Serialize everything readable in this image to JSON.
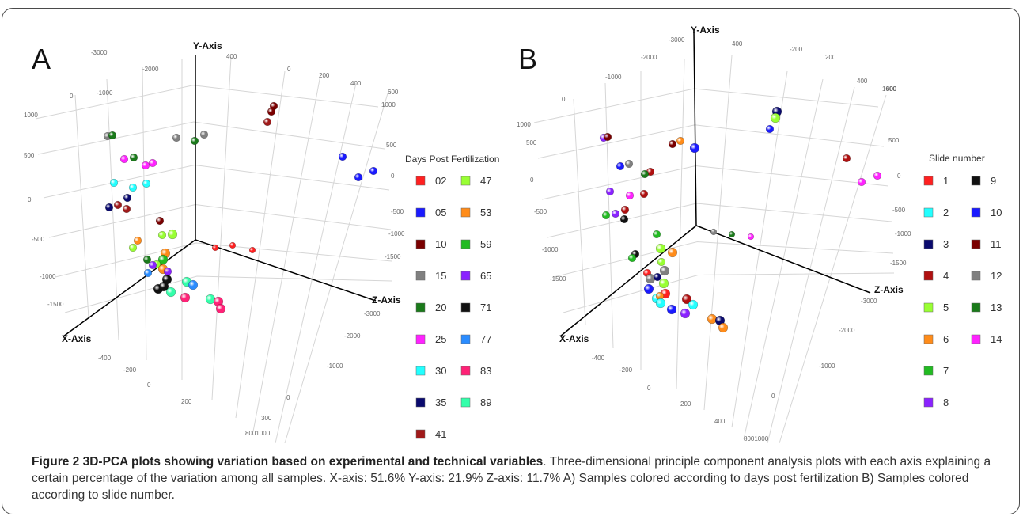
{
  "caption": {
    "title": "Figure 2 3D-PCA plots showing variation based on experimental and technical variables",
    "text": ". Three-dimensional principle component analysis plots with each axis explaining a certain percentage of the variation among all samples. X-axis: 51.6% Y-axis: 21.9% Z-axis: 11.7% A) Samples colored according to days post fertilization B) Samples colored according to slide number."
  },
  "chart_data": [
    {
      "type": "scatter",
      "panel_label": "A",
      "axes": {
        "x": "X-Axis",
        "y": "Y-Axis",
        "z": "Z-Axis"
      },
      "tick_labels": {
        "top_row": [
          "-3000",
          "-2000",
          "-1000",
          "0",
          "400",
          "0",
          "200",
          "400",
          "600"
        ],
        "left_column": [
          "1000",
          "500",
          "0",
          "-500",
          "-1000",
          "-1500"
        ],
        "right_column": [
          "1000",
          "500",
          "0",
          "-500",
          "-1000",
          "-1500"
        ],
        "bottom_right": [
          "-3000",
          "-2000",
          "-1000",
          "0",
          "300",
          "8001000"
        ],
        "bottom_left": [
          "-400",
          "-200",
          "0",
          "200"
        ]
      },
      "legend": {
        "title": "Days Post Fertilization",
        "placement": "right",
        "entries": [
          {
            "label": "02",
            "color": "#ff2020"
          },
          {
            "label": "05",
            "color": "#1a1aff"
          },
          {
            "label": "10",
            "color": "#7a0000"
          },
          {
            "label": "15",
            "color": "#808080"
          },
          {
            "label": "20",
            "color": "#1a7a1a"
          },
          {
            "label": "25",
            "color": "#ff22ff"
          },
          {
            "label": "30",
            "color": "#22ffff"
          },
          {
            "label": "35",
            "color": "#0a0a6e"
          },
          {
            "label": "41",
            "color": "#a01a1a"
          },
          {
            "label": "47",
            "color": "#99ff33"
          },
          {
            "label": "53",
            "color": "#ff8c1a"
          },
          {
            "label": "59",
            "color": "#22bb22"
          },
          {
            "label": "65",
            "color": "#8a22ff"
          },
          {
            "label": "71",
            "color": "#111111"
          },
          {
            "label": "77",
            "color": "#2a8cff"
          },
          {
            "label": "83",
            "color": "#ff2277"
          },
          {
            "label": "89",
            "color": "#33ffaa"
          }
        ]
      },
      "points": [
        {
          "group": "10",
          "x": 346,
          "y": 134,
          "r": 4
        },
        {
          "group": "10",
          "x": 343,
          "y": 141,
          "r": 4
        },
        {
          "group": "41",
          "x": 338,
          "y": 154,
          "r": 4
        },
        {
          "group": "05",
          "x": 433,
          "y": 198,
          "r": 4
        },
        {
          "group": "05",
          "x": 472,
          "y": 216,
          "r": 4
        },
        {
          "group": "05",
          "x": 453,
          "y": 224,
          "r": 4
        },
        {
          "group": "15",
          "x": 136,
          "y": 172,
          "r": 4
        },
        {
          "group": "20",
          "x": 142,
          "y": 171,
          "r": 4
        },
        {
          "group": "15",
          "x": 223,
          "y": 174,
          "r": 4
        },
        {
          "group": "15",
          "x": 258,
          "y": 170,
          "r": 4
        },
        {
          "group": "20",
          "x": 246,
          "y": 178,
          "r": 4
        },
        {
          "group": "25",
          "x": 157,
          "y": 201,
          "r": 4
        },
        {
          "group": "20",
          "x": 169,
          "y": 199,
          "r": 4
        },
        {
          "group": "25",
          "x": 184,
          "y": 209,
          "r": 4
        },
        {
          "group": "25",
          "x": 193,
          "y": 206,
          "r": 4
        },
        {
          "group": "30",
          "x": 144,
          "y": 231,
          "r": 4
        },
        {
          "group": "30",
          "x": 168,
          "y": 237,
          "r": 4
        },
        {
          "group": "30",
          "x": 185,
          "y": 232,
          "r": 4
        },
        {
          "group": "35",
          "x": 161,
          "y": 250,
          "r": 4
        },
        {
          "group": "35",
          "x": 138,
          "y": 262,
          "r": 4
        },
        {
          "group": "41",
          "x": 149,
          "y": 259,
          "r": 4
        },
        {
          "group": "41",
          "x": 160,
          "y": 264,
          "r": 4
        },
        {
          "group": "10",
          "x": 202,
          "y": 279,
          "r": 4
        },
        {
          "group": "47",
          "x": 205,
          "y": 297,
          "r": 4
        },
        {
          "group": "47",
          "x": 218,
          "y": 296,
          "r": 5
        },
        {
          "group": "53",
          "x": 174,
          "y": 304,
          "r": 4
        },
        {
          "group": "47",
          "x": 168,
          "y": 313,
          "r": 4
        },
        {
          "group": "53",
          "x": 209,
          "y": 320,
          "r": 5
        },
        {
          "group": "59",
          "x": 206,
          "y": 328,
          "r": 5
        },
        {
          "group": "20",
          "x": 186,
          "y": 328,
          "r": 4
        },
        {
          "group": "47",
          "x": 198,
          "y": 334,
          "r": 4
        },
        {
          "group": "65",
          "x": 193,
          "y": 335,
          "r": 4
        },
        {
          "group": "53",
          "x": 206,
          "y": 340,
          "r": 5
        },
        {
          "group": "77",
          "x": 187,
          "y": 345,
          "r": 4
        },
        {
          "group": "65",
          "x": 212,
          "y": 343,
          "r": 4
        },
        {
          "group": "71",
          "x": 211,
          "y": 353,
          "r": 5
        },
        {
          "group": "89",
          "x": 236,
          "y": 356,
          "r": 5
        },
        {
          "group": "77",
          "x": 244,
          "y": 360,
          "r": 5
        },
        {
          "group": "71",
          "x": 200,
          "y": 365,
          "r": 5
        },
        {
          "group": "71",
          "x": 207,
          "y": 362,
          "r": 5
        },
        {
          "group": "89",
          "x": 216,
          "y": 369,
          "r": 5
        },
        {
          "group": "83",
          "x": 234,
          "y": 376,
          "r": 5
        },
        {
          "group": "89",
          "x": 266,
          "y": 378,
          "r": 5
        },
        {
          "group": "83",
          "x": 276,
          "y": 381,
          "r": 5
        },
        {
          "group": "83",
          "x": 279,
          "y": 390,
          "r": 5
        },
        {
          "group": "02",
          "x": 272,
          "y": 313,
          "r": 3
        },
        {
          "group": "02",
          "x": 294,
          "y": 310,
          "r": 3
        },
        {
          "group": "02",
          "x": 319,
          "y": 316,
          "r": 3
        }
      ]
    },
    {
      "type": "scatter",
      "panel_label": "B",
      "axes": {
        "x": "X-Axis",
        "y": "Y-Axis",
        "z": "Z-Axis"
      },
      "tick_labels": {
        "top_row": [
          "-3000",
          "-2000",
          "-1000",
          "0",
          "400",
          "-200",
          "200",
          "400",
          "600"
        ],
        "left_column": [
          "1000",
          "500",
          "0",
          "-500",
          "-1000",
          "-1500"
        ],
        "right_column": [
          "1000",
          "500",
          "0",
          "-500",
          "-1000",
          "-1500"
        ],
        "bottom_right": [
          "-3000",
          "-2000",
          "-1000",
          "0",
          "8001000"
        ],
        "bottom_left": [
          "-400",
          "-200",
          "0",
          "200",
          "400"
        ]
      },
      "legend": {
        "title": "Slide number",
        "placement": "right",
        "entries": [
          {
            "label": "1",
            "color": "#ff2020"
          },
          {
            "label": "2",
            "color": "#22ffff"
          },
          {
            "label": "3",
            "color": "#0a0a6e"
          },
          {
            "label": "4",
            "color": "#b01010"
          },
          {
            "label": "5",
            "color": "#99ff33"
          },
          {
            "label": "6",
            "color": "#ff8c1a"
          },
          {
            "label": "7",
            "color": "#22bb22"
          },
          {
            "label": "8",
            "color": "#8a22ff"
          },
          {
            "label": "9",
            "color": "#111111"
          },
          {
            "label": "10",
            "color": "#1a1aff"
          },
          {
            "label": "11",
            "color": "#7a0000"
          },
          {
            "label": "12",
            "color": "#808080"
          },
          {
            "label": "13",
            "color": "#1a7a1a"
          },
          {
            "label": "14",
            "color": "#ff22ff"
          }
        ]
      },
      "points": [
        {
          "group": "3",
          "x": 342,
          "y": 141,
          "r": 5
        },
        {
          "group": "5",
          "x": 340,
          "y": 149,
          "r": 5
        },
        {
          "group": "10",
          "x": 333,
          "y": 163,
          "r": 4
        },
        {
          "group": "4",
          "x": 430,
          "y": 200,
          "r": 4
        },
        {
          "group": "14",
          "x": 469,
          "y": 222,
          "r": 4
        },
        {
          "group": "14",
          "x": 449,
          "y": 230,
          "r": 4
        },
        {
          "group": "8",
          "x": 123,
          "y": 174,
          "r": 4
        },
        {
          "group": "11",
          "x": 128,
          "y": 173,
          "r": 4
        },
        {
          "group": "11",
          "x": 210,
          "y": 182,
          "r": 4
        },
        {
          "group": "6",
          "x": 220,
          "y": 178,
          "r": 4
        },
        {
          "group": "10",
          "x": 238,
          "y": 187,
          "r": 5
        },
        {
          "group": "10",
          "x": 144,
          "y": 210,
          "r": 4
        },
        {
          "group": "12",
          "x": 155,
          "y": 207,
          "r": 4
        },
        {
          "group": "4",
          "x": 182,
          "y": 217,
          "r": 4
        },
        {
          "group": "13",
          "x": 175,
          "y": 220,
          "r": 4
        },
        {
          "group": "8",
          "x": 131,
          "y": 242,
          "r": 4
        },
        {
          "group": "14",
          "x": 156,
          "y": 247,
          "r": 4
        },
        {
          "group": "4",
          "x": 174,
          "y": 245,
          "r": 4
        },
        {
          "group": "8",
          "x": 138,
          "y": 270,
          "r": 4
        },
        {
          "group": "7",
          "x": 126,
          "y": 272,
          "r": 4
        },
        {
          "group": "4",
          "x": 150,
          "y": 265,
          "r": 4
        },
        {
          "group": "9",
          "x": 149,
          "y": 277,
          "r": 4
        },
        {
          "group": "7",
          "x": 190,
          "y": 296,
          "r": 4
        },
        {
          "group": "5",
          "x": 195,
          "y": 314,
          "r": 5
        },
        {
          "group": "6",
          "x": 210,
          "y": 319,
          "r": 5
        },
        {
          "group": "9",
          "x": 163,
          "y": 321,
          "r": 4
        },
        {
          "group": "7",
          "x": 159,
          "y": 326,
          "r": 4
        },
        {
          "group": "5",
          "x": 196,
          "y": 331,
          "r": 4
        },
        {
          "group": "12",
          "x": 200,
          "y": 342,
          "r": 5
        },
        {
          "group": "1",
          "x": 178,
          "y": 345,
          "r": 4
        },
        {
          "group": "12",
          "x": 182,
          "y": 352,
          "r": 5
        },
        {
          "group": "3",
          "x": 191,
          "y": 350,
          "r": 4
        },
        {
          "group": "5",
          "x": 199,
          "y": 358,
          "r": 5
        },
        {
          "group": "1",
          "x": 201,
          "y": 371,
          "r": 5
        },
        {
          "group": "10",
          "x": 180,
          "y": 365,
          "r": 5
        },
        {
          "group": "2",
          "x": 190,
          "y": 377,
          "r": 5
        },
        {
          "group": "6",
          "x": 194,
          "y": 374,
          "r": 4
        },
        {
          "group": "2",
          "x": 195,
          "y": 383,
          "r": 5
        },
        {
          "group": "4",
          "x": 228,
          "y": 378,
          "r": 5
        },
        {
          "group": "2",
          "x": 236,
          "y": 385,
          "r": 5
        },
        {
          "group": "10",
          "x": 209,
          "y": 391,
          "r": 5
        },
        {
          "group": "8",
          "x": 226,
          "y": 396,
          "r": 5
        },
        {
          "group": "6",
          "x": 260,
          "y": 403,
          "r": 5
        },
        {
          "group": "3",
          "x": 270,
          "y": 405,
          "r": 5
        },
        {
          "group": "6",
          "x": 274,
          "y": 414,
          "r": 5
        },
        {
          "group": "12",
          "x": 262,
          "y": 293,
          "r": 3
        },
        {
          "group": "13",
          "x": 285,
          "y": 296,
          "r": 3
        },
        {
          "group": "14",
          "x": 309,
          "y": 299,
          "r": 3
        }
      ]
    }
  ]
}
